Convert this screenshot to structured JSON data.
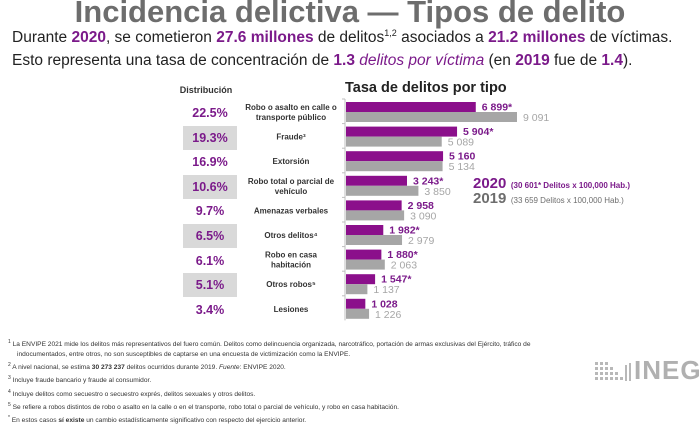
{
  "header": {
    "title": "Incidencia delictiva — Tipos de delito",
    "line1": {
      "t1": "Durante ",
      "year": "2020",
      "t2": ", se cometieron ",
      "crimes": "27.6 millones",
      "t3": " de delitos",
      "sup": "1,2",
      "t4": " asociados a ",
      "victims": "21.2 millones",
      "t5": " de víctimas."
    },
    "line2": {
      "t1": "Esto representa una tasa de concentración de ",
      "rate": "1.3",
      "rate_label": " delitos por víctima",
      "t2": " (en ",
      "prev_year": "2019",
      "t3": " fue de ",
      "prev_rate": "1.4",
      "t4": ")."
    }
  },
  "distribution": {
    "header": "Distribución",
    "values": [
      "22.5%",
      "19.3%",
      "16.9%",
      "10.6%",
      "9.7%",
      "6.5%",
      "6.1%",
      "5.1%",
      "3.4%"
    ]
  },
  "legend": {
    "y2020": "2020",
    "y2020_desc": "(30 601* Delitos x 100,000 Hab.)",
    "y2019": "2019",
    "y2019_desc": "(33 659 Delitos x 100,000 Hab.)"
  },
  "colors": {
    "series2020": "#8b0f8b",
    "series2019": "#a6a6a6",
    "accent": "#7b1a8a",
    "title_gray": "#6d6d6d"
  },
  "chart_data": {
    "type": "bar",
    "orientation": "horizontal",
    "title": "Tasa de delitos por tipo",
    "xlabel": "",
    "ylabel": "",
    "xlim": [
      0,
      9091
    ],
    "grid": false,
    "legend_position": "right",
    "categories": [
      [
        "Robo o asalto en calle o",
        "transporte público"
      ],
      [
        "Fraude³"
      ],
      [
        "Extorsión"
      ],
      [
        "Robo total o parcial de",
        "vehículo"
      ],
      [
        "Amenazas verbales"
      ],
      [
        "Otros delitos⁴"
      ],
      [
        "Robo en casa",
        "habitación"
      ],
      [
        "Otros robos⁵"
      ],
      [
        "Lesiones"
      ]
    ],
    "series": [
      {
        "name": "2020",
        "values": [
          6899,
          5904,
          5160,
          3243,
          2958,
          1982,
          1880,
          1547,
          1028
        ],
        "labels": [
          "6 899*",
          "5 904*",
          "5 160",
          "3 243*",
          "2 958",
          "1 982*",
          "1 880*",
          "1 547*",
          "1 028"
        ]
      },
      {
        "name": "2019",
        "values": [
          9091,
          5089,
          5134,
          3850,
          3090,
          2979,
          2063,
          1137,
          1226
        ],
        "labels": [
          "9 091",
          "5 089",
          "5 134",
          "3 850",
          "3 090",
          "2 979",
          "2 063",
          "1 137",
          "1 226"
        ]
      }
    ]
  },
  "footnotes": [
    {
      "sup": "1",
      "text": " La ENVIPE 2021 mide los delitos más representativos del fuero común. Delitos como delincuencia organizada, narcotráfico, portación de armas exclusivas del Ejército, tráfico de"
    },
    {
      "sup": "",
      "text": "indocumentados, entre otros, no son susceptibles de captarse en una encuesta de victimización como la ENVIPE."
    },
    {
      "sup": "2",
      "text_a": " A nivel nacional, se estima ",
      "bold": "30 273 237",
      "text_b": " delitos ocurridos durante 2019. ",
      "ital": "Fuente",
      "text_c": ": ENVIPE 2020."
    },
    {
      "sup": "3",
      "text": " Incluye fraude bancario y fraude al consumidor."
    },
    {
      "sup": "4",
      "text": " Incluye delitos como secuestro o secuestro exprés, delitos sexuales y otros delitos."
    },
    {
      "sup": "5",
      "text": " Se refiere a robos distintos de robo o asalto en la calle o en el transporte, robo total o parcial de vehículo, y robo en casa habitación."
    },
    {
      "sup": "*",
      "text_a": " En estos casos ",
      "bold": "sí existe",
      "text_b": " un cambio estadísticamente significativo con respecto del ejercicio anterior."
    }
  ],
  "logo": {
    "text": "INEGI"
  }
}
